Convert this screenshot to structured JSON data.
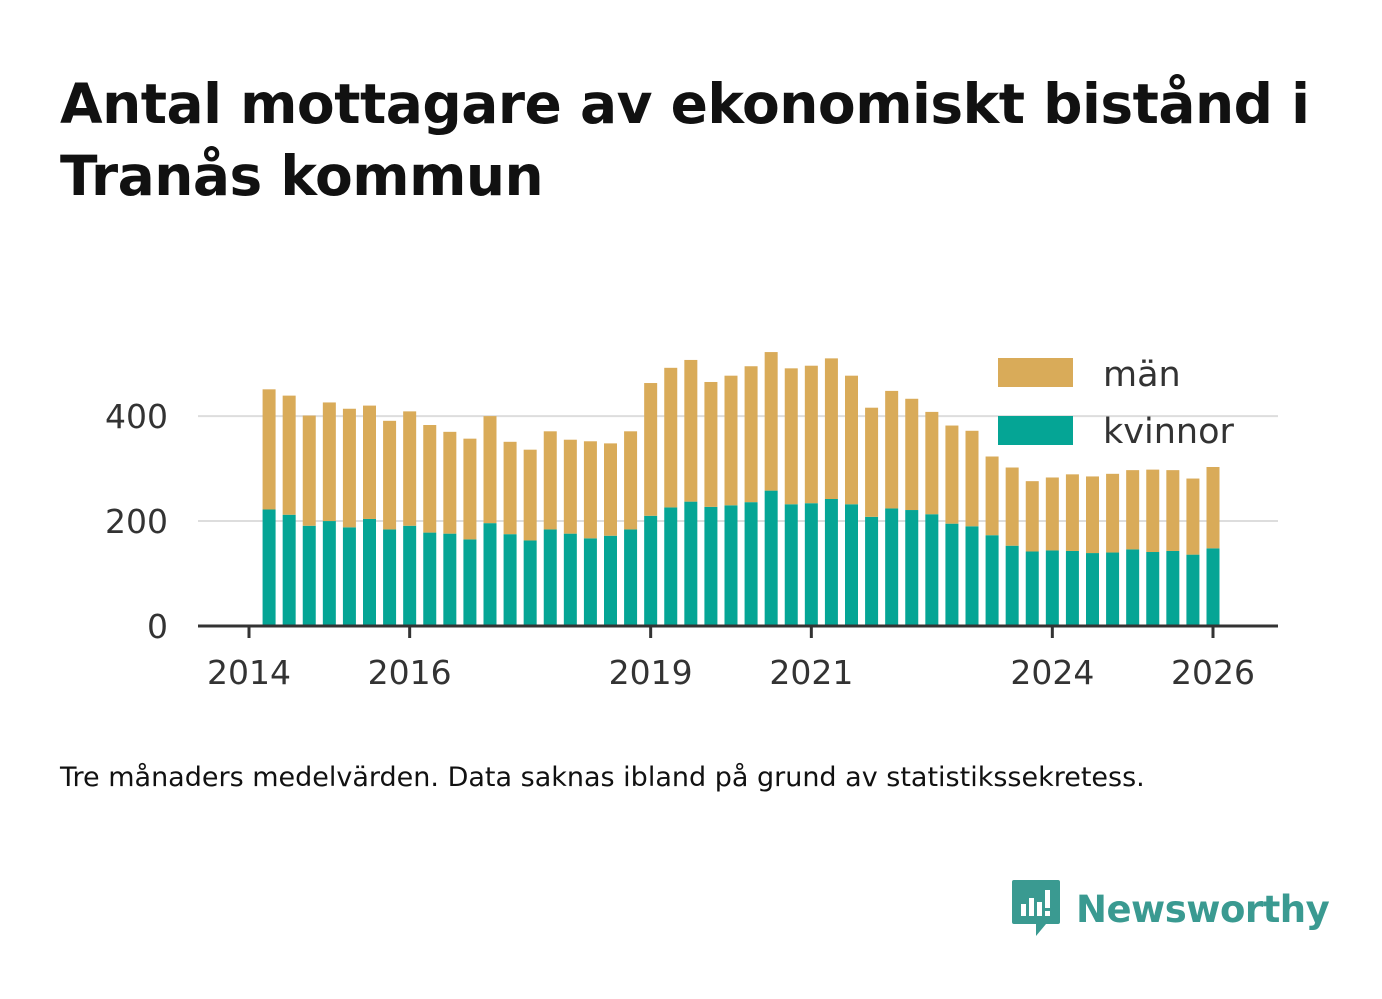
{
  "title": "Antal mottagare av ekonomiskt bistånd i Tranås kommun",
  "note": "Tre månaders medelvärden. Data saknas ibland på grund av statistikssekretess.",
  "brand": {
    "name": "Newsworthy",
    "icon": "newsworthy-logo-icon"
  },
  "colors": {
    "man": "#d9ab59",
    "kvinnor": "#05a595",
    "grid": "#dddddd",
    "axis": "#333333",
    "brand": "#3a9a91"
  },
  "chart_data": {
    "type": "bar",
    "stacked": true,
    "title": "Antal mottagare av ekonomiskt bistånd i Tranås kommun",
    "xlabel": "",
    "ylabel": "",
    "ylim": [
      0,
      545
    ],
    "yticks": [
      0,
      200,
      400
    ],
    "xticks": [
      "2014",
      "2016",
      "2019",
      "2021",
      "2024",
      "2026"
    ],
    "grid": true,
    "legend_position": "top-right",
    "legend": [
      "män",
      "kvinnor"
    ],
    "series": [
      {
        "name": "kvinnor",
        "values": [
          222,
          212,
          191,
          200,
          188,
          204,
          184,
          191,
          178,
          176,
          165,
          196,
          175,
          163,
          184,
          176,
          167,
          172,
          184,
          210,
          226,
          237,
          227,
          230,
          236,
          258,
          232,
          234,
          242,
          232,
          208,
          224,
          221,
          213,
          195,
          190,
          173,
          153,
          142,
          144,
          143,
          139,
          140,
          146,
          141,
          143,
          136,
          148
        ]
      },
      {
        "name": "män",
        "values": [
          229,
          227,
          210,
          226,
          226,
          216,
          207,
          218,
          205,
          194,
          192,
          204,
          176,
          173,
          187,
          179,
          185,
          176,
          187,
          253,
          266,
          270,
          238,
          247,
          259,
          264,
          259,
          262,
          268,
          245,
          208,
          224,
          212,
          195,
          187,
          182,
          150,
          149,
          134,
          139,
          146,
          146,
          150,
          151,
          157,
          154,
          145,
          155
        ]
      }
    ]
  }
}
